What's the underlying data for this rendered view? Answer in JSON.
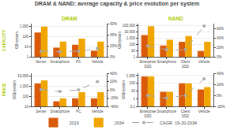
{
  "title": "DRAM & NAND: average capacity & price evolution per system",
  "legend": "bottom",
  "annotations": [
    {
      "text": "DRAM",
      "color": "#AACC00"
    },
    {
      "text": "NAND",
      "color": "#AACC00"
    },
    {
      "text": "CAPACITY",
      "color": "#AACC00"
    },
    {
      "text": "PRICE",
      "color": "#AACC00"
    }
  ],
  "chart_data": [
    {
      "type": "bar",
      "ylabel": "GB/system",
      "log": "y",
      "grid": true,
      "categories": [
        "Server",
        "Smartphone",
        "PC",
        "Vehicle"
      ],
      "ylim": [
        1,
        2000
      ],
      "yticks": [
        1,
        10,
        100,
        {
          "value": 1000,
          "label": "1,000"
        }
      ],
      "y2lim": [
        0,
        60
      ],
      "y2ticks": [
        {
          "value": 0,
          "label": "0%"
        },
        {
          "value": 20,
          "label": "20%"
        },
        {
          "value": 40,
          "label": "40%"
        },
        {
          "value": 60,
          "label": "60%"
        }
      ],
      "series": [
        {
          "name": "2019",
          "color": "#D95B0A",
          "values": [
            256,
            8,
            16,
            4
          ]
        },
        {
          "name": "2034",
          "color": "#F0A500",
          "values": [
            1000,
            32,
            64,
            32
          ]
        },
        {
          "name": "CAGR  19-20-2034",
          "type": "line",
          "axis": "y2",
          "color": "#AAAAAA",
          "line_style": "dashed",
          "marker": "circle",
          "values": [
            10,
            9,
            10,
            15
          ]
        }
      ]
    },
    {
      "type": "bar",
      "ylabel": "GB/system",
      "log": "y",
      "grid": true,
      "categories": [
        "Enterprise\nSSD",
        "Smartphone",
        "Client\nSSD",
        "Vehicle"
      ],
      "ylim": [
        1,
        200000
      ],
      "yticks": [
        1,
        10,
        100,
        {
          "value": 1000,
          "label": "1,000"
        },
        {
          "value": 10000,
          "label": "10,000"
        },
        {
          "value": 100000,
          "label": "100,000"
        }
      ],
      "y2lim": [
        0,
        70
      ],
      "y2ticks": [
        {
          "value": 0,
          "label": "0%"
        },
        {
          "value": 20,
          "label": "20%"
        },
        {
          "value": 40,
          "label": "40%"
        },
        {
          "value": 60,
          "label": "60%"
        }
      ],
      "series": [
        {
          "name": "2019",
          "color": "#D95B0A",
          "values": [
            3000,
            64,
            256,
            8
          ]
        },
        {
          "name": "2034",
          "color": "#F0A500",
          "values": [
            80000,
            512,
            2000,
            256
          ]
        },
        {
          "name": "CAGR  19-20-2034",
          "type": "line",
          "axis": "y2",
          "color": "#AAAAAA",
          "line_style": "dashed",
          "marker": "circle",
          "values": [
            23,
            15,
            15,
            65
          ]
        }
      ]
    },
    {
      "type": "bar",
      "ylabel": "US$/system",
      "log": "y",
      "grid": true,
      "categories": [
        "Server",
        "Smartphone",
        "PC",
        "Vehicle"
      ],
      "ylim": [
        10,
        20000
      ],
      "yticks": [
        10,
        100,
        {
          "value": 1000,
          "label": "1,000"
        },
        {
          "value": 10000,
          "label": "10,000"
        }
      ],
      "y2lim": [
        -40,
        40
      ],
      "y2ticks": [
        {
          "value": -40,
          "label": "-40%"
        },
        {
          "value": -20,
          "label": "-20%"
        },
        {
          "value": 0,
          "label": "0%"
        },
        {
          "value": 20,
          "label": "20%"
        },
        {
          "value": 40,
          "label": "40%"
        }
      ],
      "series": [
        {
          "name": "2019",
          "color": "#D95B0A",
          "values": [
            2000,
            32,
            64,
            64
          ]
        },
        {
          "name": "2034",
          "color": "#F0A500",
          "values": [
            4000,
            64,
            256,
            256
          ]
        },
        {
          "name": "CAGR  19-20-2034",
          "type": "line",
          "axis": "y2",
          "color": "#AAAAAA",
          "line_style": "dashed",
          "marker": "circle",
          "values": [
            1,
            -4,
            0,
            20
          ]
        }
      ]
    },
    {
      "type": "bar",
      "ylabel": "US$/system",
      "log": "y",
      "grid": true,
      "categories": [
        "Enterprise\nSSD",
        "Smartphone",
        "Client\nSSD",
        "Vehicle"
      ],
      "ylim": [
        0.1,
        2000
      ],
      "yticks": [
        0.1,
        1,
        10,
        100,
        {
          "value": 1000,
          "label": "1,000"
        }
      ],
      "y2lim": [
        -20,
        40
      ],
      "y2ticks": [
        {
          "value": -20,
          "label": "-20%"
        },
        {
          "value": 0,
          "label": "0%"
        },
        {
          "value": 20,
          "label": "20%"
        },
        {
          "value": 40,
          "label": "40%"
        }
      ],
      "series": [
        {
          "name": "2019",
          "color": "#D95B0A",
          "values": [
            800,
            8,
            100,
            16
          ]
        },
        {
          "name": "2034",
          "color": "#F0A500",
          "values": [
            800,
            8,
            100,
            32
          ]
        },
        {
          "name": "CAGR  19-20-2034",
          "type": "line",
          "axis": "y2",
          "color": "#AAAAAA",
          "line_style": "dashed",
          "marker": "circle",
          "values": [
            0,
            -5,
            0,
            30
          ]
        }
      ]
    }
  ]
}
